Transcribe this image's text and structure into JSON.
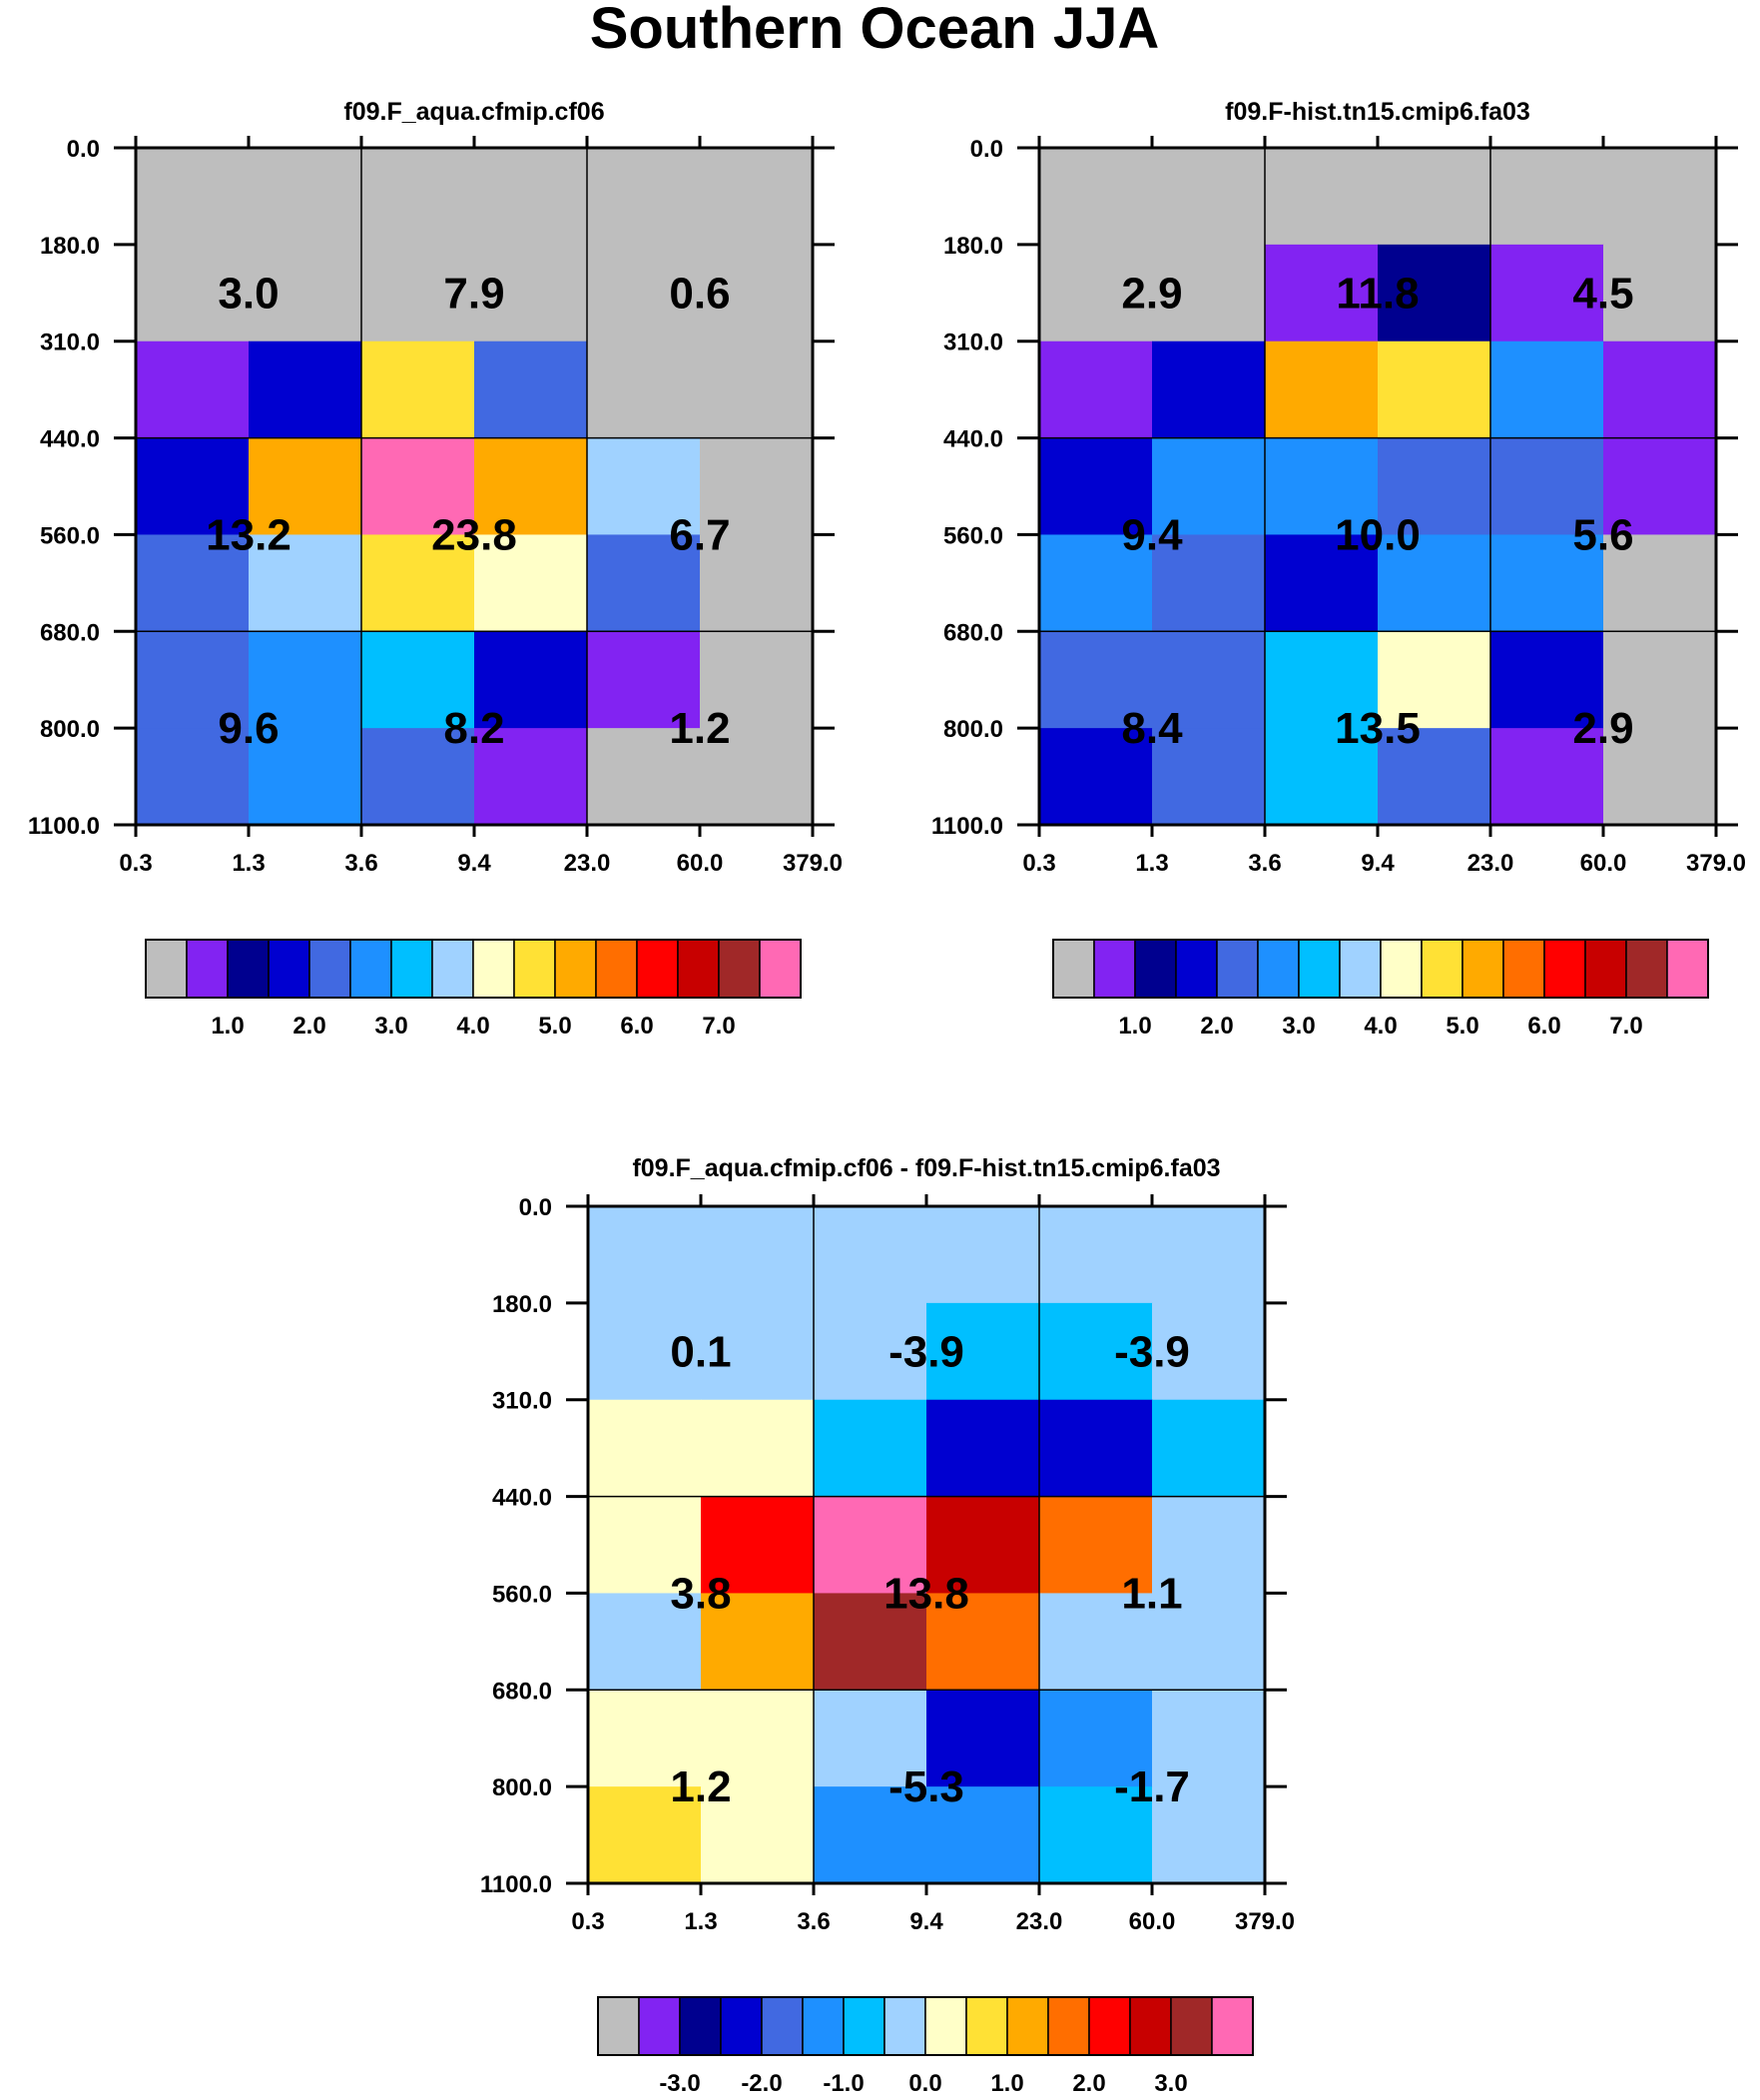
{
  "chart_data": {
    "type": "heatmap",
    "title": "Southern Ocean JJA",
    "colormap_colors": [
      "#bebebe",
      "#8223f2",
      "#00008f",
      "#0000d0",
      "#4169e1",
      "#1e90ff",
      "#00bfff",
      "#a0d2ff",
      "#ffffc8",
      "#ffe135",
      "#ffaa00",
      "#ff6e00",
      "#ff0000",
      "#c80000",
      "#a02828",
      "#ff69b4"
    ],
    "x_tick_labels": [
      "0.3",
      "1.3",
      "3.6",
      "9.4",
      "23.0",
      "60.0",
      "379.0"
    ],
    "y_tick_labels": [
      "0.0",
      "180.0",
      "310.0",
      "440.0",
      "560.0",
      "680.0",
      "800.0",
      "1100.0"
    ],
    "panels": [
      {
        "name": "panel-model-a",
        "title": "f09.F_aqua.cfmip.cf06",
        "cells": [
          [
            0,
            0,
            0,
            0,
            0,
            0
          ],
          [
            0,
            0,
            0,
            0,
            0,
            0
          ],
          [
            1,
            3,
            9,
            4,
            0,
            0
          ],
          [
            3,
            10,
            15,
            10,
            7,
            0
          ],
          [
            4,
            7,
            9,
            8,
            4,
            0
          ],
          [
            4,
            5,
            6,
            3,
            1,
            0
          ],
          [
            4,
            5,
            4,
            1,
            0,
            0
          ]
        ],
        "box_values": [
          [
            3.0,
            7.9,
            0.6
          ],
          [
            13.2,
            23.8,
            6.7
          ],
          [
            9.6,
            8.2,
            1.2
          ]
        ],
        "box_labels": [
          [
            "3.0",
            "7.9",
            "0.6"
          ],
          [
            "13.2",
            "23.8",
            "6.7"
          ],
          [
            "9.6",
            "8.2",
            "1.2"
          ]
        ],
        "colorbar_labels": [
          "1.0",
          "2.0",
          "3.0",
          "4.0",
          "5.0",
          "6.0",
          "7.0"
        ]
      },
      {
        "name": "panel-model-b",
        "title": "f09.F-hist.tn15.cmip6.fa03",
        "cells": [
          [
            0,
            0,
            0,
            0,
            0,
            0
          ],
          [
            0,
            0,
            1,
            2,
            1,
            0
          ],
          [
            1,
            3,
            10,
            9,
            5,
            1
          ],
          [
            3,
            5,
            5,
            4,
            4,
            1
          ],
          [
            5,
            4,
            3,
            5,
            5,
            0
          ],
          [
            4,
            4,
            6,
            8,
            3,
            0
          ],
          [
            3,
            4,
            6,
            4,
            1,
            0
          ]
        ],
        "box_values": [
          [
            2.9,
            11.8,
            4.5
          ],
          [
            9.4,
            10.0,
            5.6
          ],
          [
            8.4,
            13.5,
            2.9
          ]
        ],
        "box_labels": [
          [
            "2.9",
            "11.8",
            "4.5"
          ],
          [
            "9.4",
            "10.0",
            "5.6"
          ],
          [
            "8.4",
            "13.5",
            "2.9"
          ]
        ],
        "colorbar_labels": [
          "1.0",
          "2.0",
          "3.0",
          "4.0",
          "5.0",
          "6.0",
          "7.0"
        ]
      },
      {
        "name": "panel-difference",
        "title": "f09.F_aqua.cfmip.cf06 - f09.F-hist.tn15.cmip6.fa03",
        "cells": [
          [
            7,
            7,
            7,
            7,
            7,
            7
          ],
          [
            7,
            7,
            7,
            6,
            6,
            7
          ],
          [
            8,
            8,
            6,
            3,
            3,
            6
          ],
          [
            8,
            12,
            15,
            13,
            11,
            7
          ],
          [
            7,
            10,
            14,
            11,
            7,
            7
          ],
          [
            8,
            8,
            7,
            3,
            5,
            7
          ],
          [
            9,
            8,
            5,
            5,
            6,
            7
          ]
        ],
        "box_values": [
          [
            0.1,
            -3.9,
            -3.9
          ],
          [
            3.8,
            13.8,
            1.1
          ],
          [
            1.2,
            -5.3,
            -1.7
          ]
        ],
        "box_labels": [
          [
            "0.1",
            "-3.9",
            "-3.9"
          ],
          [
            "3.8",
            "13.8",
            "1.1"
          ],
          [
            "1.2",
            "-5.3",
            "-1.7"
          ]
        ],
        "colorbar_labels": [
          "-3.0",
          "-2.0",
          "-1.0",
          "0.0",
          "1.0",
          "2.0",
          "3.0"
        ]
      }
    ]
  }
}
